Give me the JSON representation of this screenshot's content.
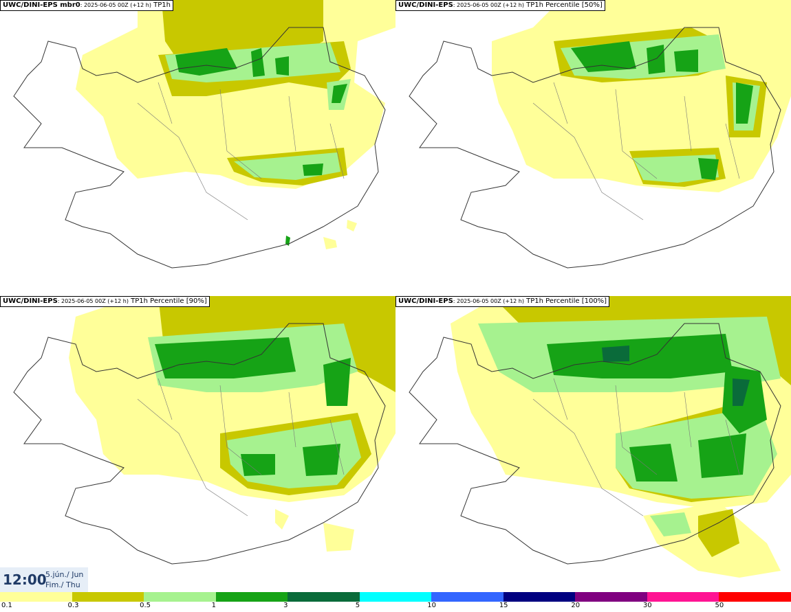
{
  "panels": [
    {
      "model": "UWC/DINI-EPS mbr0",
      "meta": ": 2025-06-05 00Z (+12 h)",
      "field": " TP1h"
    },
    {
      "model": "UWC/DINI-EPS",
      "meta": ": 2025-06-05 00Z (+12 h)",
      "field": " TP1h Percentile [50%]"
    },
    {
      "model": "UWC/DINI-EPS",
      "meta": ": 2025-06-05 00Z (+12 h)",
      "field": " TP1h Percentile [90%]"
    },
    {
      "model": "UWC/DINI-EPS",
      "meta": ": 2025-06-05 00Z (+12 h)",
      "field": " TP1h Percentile [100%]"
    }
  ],
  "valid_time": {
    "time": "12:00",
    "date_line1": "5.jún./ Jun",
    "date_line2": "Fim./ Thu"
  },
  "legend": {
    "colors": [
      "#ffff99",
      "#c8c800",
      "#a6f28f",
      "#16a316",
      "#0a6b3a",
      "#00ffff",
      "#3366ff",
      "#000080",
      "#800080",
      "#ff1493",
      "#ff0000"
    ],
    "labels": [
      "0.1",
      "0.3",
      "0.5",
      "1",
      "3",
      "5",
      "10",
      "15",
      "20",
      "30",
      "50"
    ]
  },
  "colors": {
    "level_0_1": "#ffff99",
    "level_0_3": "#c8c800",
    "level_0_5": "#a6f28f",
    "level_1": "#16a316",
    "level_3": "#0a6b3a",
    "coast": "#333333",
    "time_box": "#e6eef7"
  }
}
